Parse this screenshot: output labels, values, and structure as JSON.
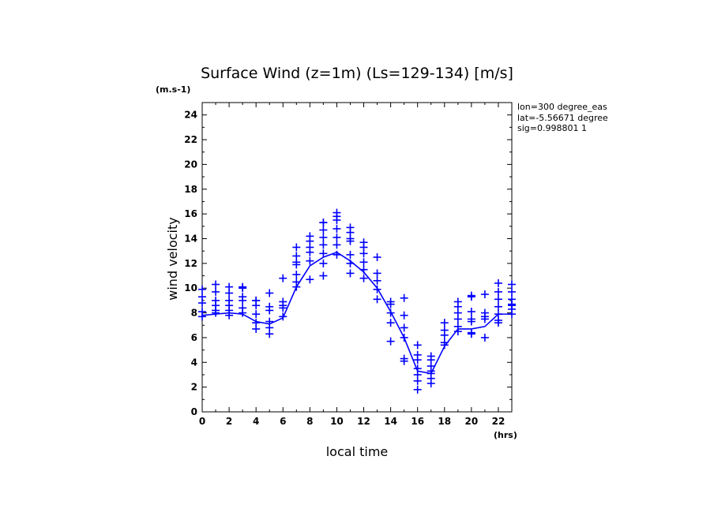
{
  "chart_data": {
    "type": "scatter",
    "title": "Surface Wind (z=1m) (Ls=129-134) [m/s]",
    "ylabel": "wind velocity",
    "yunit": "(m.s-1)",
    "xlabel": "local time",
    "xunit": "(hrs)",
    "xlim": [
      0,
      23
    ],
    "ylim": [
      0,
      25
    ],
    "xticks": [
      0,
      2,
      4,
      6,
      8,
      10,
      12,
      14,
      16,
      18,
      20,
      22
    ],
    "yticks": [
      0,
      2,
      4,
      6,
      8,
      10,
      12,
      14,
      16,
      18,
      20,
      22,
      24
    ],
    "info": [
      "lon=300 degree_eas",
      "lat=-5.56671 degree",
      "sig=0.998801 1"
    ],
    "color": "#0000ff",
    "series": [
      {
        "kind": "line",
        "x": [
          0,
          1,
          2,
          3,
          4,
          5,
          6,
          7,
          8,
          9,
          10,
          11,
          12,
          13,
          14,
          15,
          16,
          17,
          18,
          19,
          20,
          21,
          22,
          23
        ],
        "y": [
          7.8,
          7.9,
          8.0,
          7.9,
          7.3,
          7.1,
          7.6,
          10.1,
          11.8,
          12.5,
          12.9,
          12.2,
          11.3,
          10.0,
          8.1,
          6.0,
          3.3,
          3.1,
          5.3,
          6.7,
          6.7,
          6.9,
          7.9,
          7.9
        ]
      },
      {
        "kind": "scatter",
        "points": [
          [
            0,
            7.7
          ],
          [
            0,
            8.1
          ],
          [
            0,
            8.8
          ],
          [
            0,
            9.3
          ],
          [
            0,
            9.9
          ],
          [
            1,
            8.0
          ],
          [
            1,
            8.2
          ],
          [
            1,
            8.6
          ],
          [
            1,
            9.0
          ],
          [
            1,
            9.7
          ],
          [
            1,
            10.3
          ],
          [
            2,
            7.8
          ],
          [
            2,
            8.2
          ],
          [
            2,
            8.6
          ],
          [
            2,
            9.0
          ],
          [
            2,
            9.6
          ],
          [
            2,
            10.1
          ],
          [
            3,
            8.0
          ],
          [
            3,
            8.4
          ],
          [
            3,
            9.0
          ],
          [
            3,
            9.3
          ],
          [
            3,
            10.0
          ],
          [
            3,
            10.1
          ],
          [
            4,
            6.7
          ],
          [
            4,
            7.2
          ],
          [
            4,
            7.9
          ],
          [
            4,
            8.6
          ],
          [
            4,
            9.0
          ],
          [
            4,
            9.0
          ],
          [
            5,
            6.3
          ],
          [
            5,
            6.8
          ],
          [
            5,
            7.3
          ],
          [
            5,
            8.2
          ],
          [
            5,
            8.5
          ],
          [
            5,
            9.6
          ],
          [
            6,
            7.7
          ],
          [
            6,
            8.4
          ],
          [
            6,
            8.6
          ],
          [
            6,
            8.9
          ],
          [
            6,
            10.8
          ],
          [
            7,
            10.1
          ],
          [
            7,
            10.5
          ],
          [
            7,
            11.1
          ],
          [
            7,
            11.9
          ],
          [
            7,
            12.1
          ],
          [
            7,
            12.6
          ],
          [
            7,
            13.3
          ],
          [
            8,
            10.7
          ],
          [
            8,
            12.2
          ],
          [
            8,
            12.9
          ],
          [
            8,
            13.3
          ],
          [
            8,
            13.8
          ],
          [
            8,
            14.2
          ],
          [
            9,
            11.0
          ],
          [
            9,
            12.0
          ],
          [
            9,
            12.8
          ],
          [
            9,
            13.5
          ],
          [
            9,
            14.1
          ],
          [
            9,
            14.7
          ],
          [
            9,
            15.3
          ],
          [
            9,
            15.3
          ],
          [
            10,
            12.7
          ],
          [
            10,
            13.5
          ],
          [
            10,
            14.1
          ],
          [
            10,
            14.8
          ],
          [
            10,
            15.5
          ],
          [
            10,
            15.8
          ],
          [
            10,
            16.1
          ],
          [
            11,
            11.2
          ],
          [
            11,
            12.0
          ],
          [
            11,
            12.7
          ],
          [
            11,
            13.8
          ],
          [
            11,
            14.0
          ],
          [
            11,
            14.5
          ],
          [
            11,
            14.9
          ],
          [
            12,
            10.8
          ],
          [
            12,
            11.5
          ],
          [
            12,
            12.1
          ],
          [
            12,
            12.8
          ],
          [
            12,
            13.3
          ],
          [
            12,
            13.7
          ],
          [
            13,
            9.1
          ],
          [
            13,
            9.9
          ],
          [
            13,
            10.6
          ],
          [
            13,
            11.2
          ],
          [
            13,
            12.5
          ],
          [
            14,
            5.7
          ],
          [
            14,
            7.2
          ],
          [
            14,
            8.0
          ],
          [
            14,
            8.7
          ],
          [
            14,
            8.9
          ],
          [
            15,
            4.1
          ],
          [
            15,
            4.3
          ],
          [
            15,
            6.0
          ],
          [
            15,
            6.8
          ],
          [
            15,
            7.8
          ],
          [
            15,
            9.2
          ],
          [
            16,
            1.8
          ],
          [
            16,
            2.5
          ],
          [
            16,
            3.0
          ],
          [
            16,
            3.5
          ],
          [
            16,
            4.2
          ],
          [
            16,
            4.6
          ],
          [
            16,
            5.4
          ],
          [
            17,
            2.3
          ],
          [
            17,
            2.7
          ],
          [
            17,
            3.1
          ],
          [
            17,
            3.3
          ],
          [
            17,
            3.7
          ],
          [
            17,
            4.2
          ],
          [
            17,
            4.5
          ],
          [
            18,
            5.4
          ],
          [
            18,
            5.6
          ],
          [
            18,
            6.2
          ],
          [
            18,
            6.6
          ],
          [
            18,
            7.2
          ],
          [
            19,
            6.5
          ],
          [
            19,
            6.9
          ],
          [
            19,
            7.5
          ],
          [
            19,
            8.0
          ],
          [
            19,
            8.5
          ],
          [
            19,
            8.9
          ],
          [
            20,
            6.3
          ],
          [
            20,
            6.4
          ],
          [
            20,
            7.3
          ],
          [
            20,
            7.5
          ],
          [
            20,
            8.1
          ],
          [
            20,
            9.3
          ],
          [
            20,
            9.4
          ],
          [
            21,
            6.0
          ],
          [
            21,
            7.5
          ],
          [
            21,
            7.7
          ],
          [
            21,
            8.0
          ],
          [
            21,
            9.5
          ],
          [
            22,
            7.2
          ],
          [
            22,
            7.4
          ],
          [
            22,
            7.9
          ],
          [
            22,
            8.5
          ],
          [
            22,
            9.1
          ],
          [
            22,
            9.7
          ],
          [
            22,
            10.4
          ],
          [
            23,
            7.9
          ],
          [
            23,
            8.3
          ],
          [
            23,
            8.6
          ],
          [
            23,
            8.7
          ],
          [
            23,
            9.1
          ],
          [
            23,
            9.7
          ],
          [
            23,
            10.3
          ]
        ]
      }
    ]
  }
}
